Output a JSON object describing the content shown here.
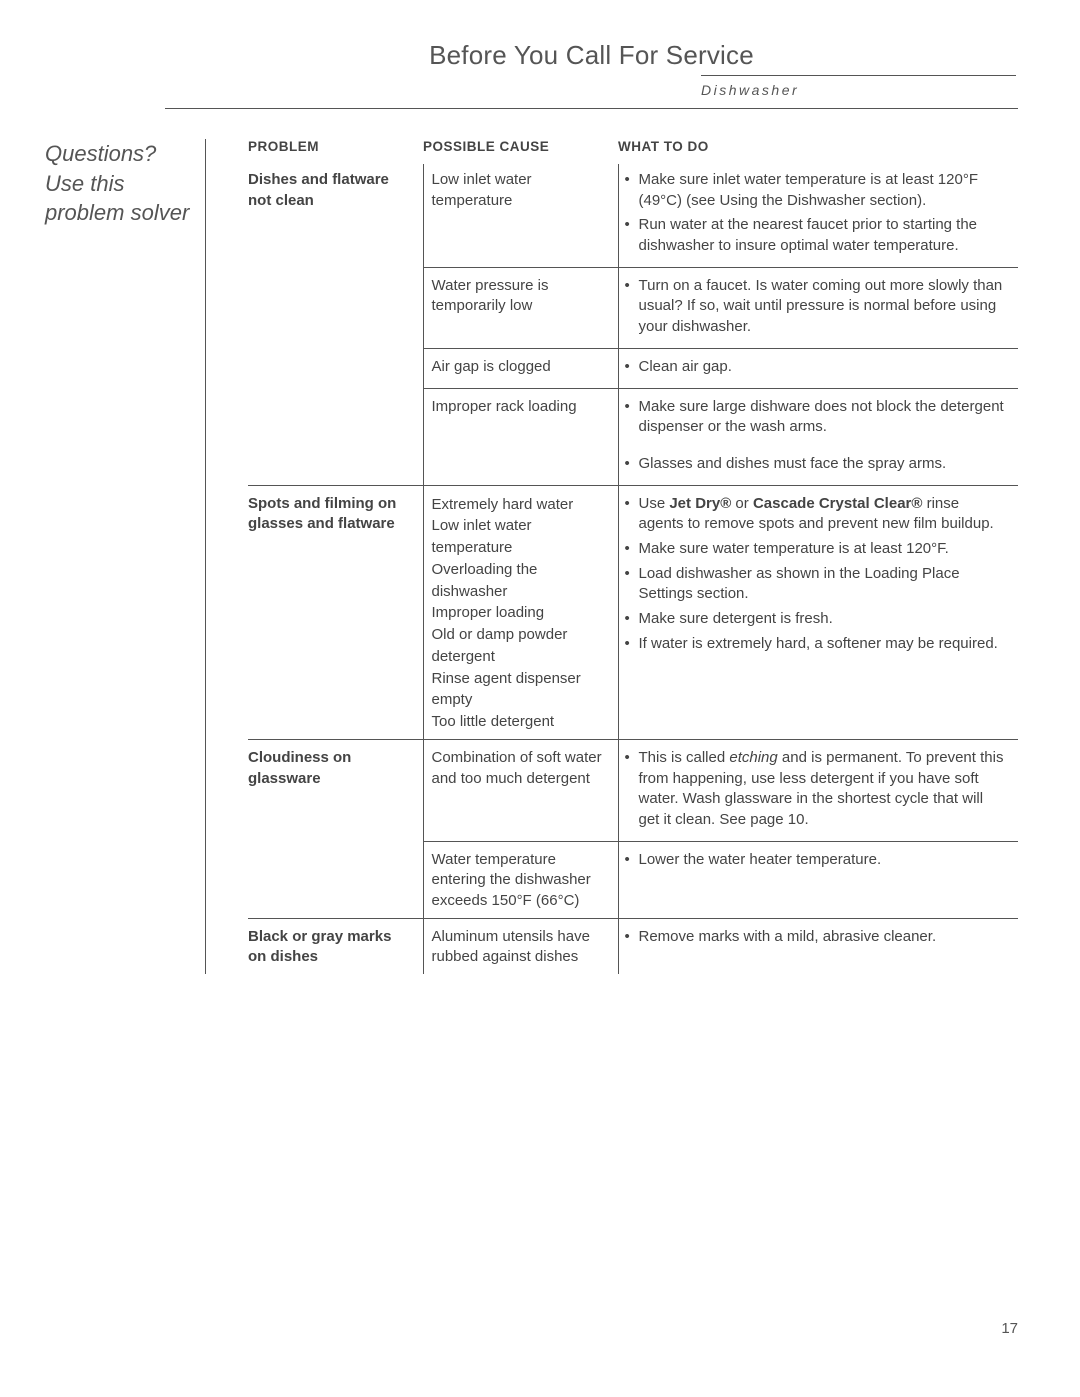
{
  "title": "Before You Call For Service",
  "subtitle": "Dishwasher",
  "sidebar": "Questions? Use this problem solver",
  "headers": {
    "problem": "PROBLEM",
    "cause": "POSSIBLE CAUSE",
    "todo": "WHAT TO DO"
  },
  "page_number": "17",
  "groups": [
    {
      "problem": "Dishes and flatware not clean",
      "rows": [
        {
          "cause": "Low inlet water temperature",
          "todo": [
            "Make sure inlet water temperature is at least 120°F (49°C) (see Using the Dishwasher section).",
            "Run water at the nearest faucet prior to starting the dishwasher to insure optimal water temperature."
          ]
        },
        {
          "cause": "Water pressure is temporarily low",
          "todo": [
            "Turn on a faucet. Is water coming out more slowly than usual? If so, wait until pressure is normal before using your dishwasher."
          ]
        },
        {
          "cause": "Air gap is clogged",
          "todo": [
            "Clean air gap."
          ]
        },
        {
          "cause": "Improper rack loading",
          "todo": [
            "Make sure large dishware does not block the detergent dispenser or the wash arms."
          ]
        },
        {
          "cause": "",
          "todo": [
            "Glasses and dishes must face the spray arms."
          ]
        }
      ]
    },
    {
      "problem": "Spots and filming on glasses and flatware",
      "rows": [
        {
          "cause_lines": [
            "Extremely hard water",
            "Low inlet water temperature",
            "Overloading the dishwasher",
            "Improper loading",
            "Old or damp powder detergent",
            "Rinse agent dispenser empty",
            "Too little detergent"
          ],
          "todo_html": [
            "Use <b>Jet Dry®</b> or <b>Cascade Crystal Clear®</b> rinse agents to remove spots and prevent new film buildup.",
            "Make sure water temperature is at least 120°F.",
            "Load dishwasher as shown in the Loading Place Settings section.",
            "Make sure detergent is fresh.",
            "If water is extremely hard, a softener may be required."
          ]
        }
      ]
    },
    {
      "problem": "Cloudiness on glassware",
      "rows": [
        {
          "cause": "Combination of soft water and too much detergent",
          "todo_html": [
            "This is called <i>etching</i> and is permanent. To prevent this from happening, use less detergent if you have soft water. Wash glassware in the shortest cycle that will get it clean. See page 10."
          ]
        },
        {
          "cause": "Water temperature entering the dishwasher exceeds 150°F (66°C)",
          "todo": [
            "Lower the water heater temperature."
          ]
        }
      ]
    },
    {
      "problem": "Black or gray marks on dishes",
      "rows": [
        {
          "cause": "Aluminum utensils have rubbed against dishes",
          "todo": [
            "Remove marks with a mild, abrasive cleaner."
          ]
        }
      ]
    }
  ]
}
